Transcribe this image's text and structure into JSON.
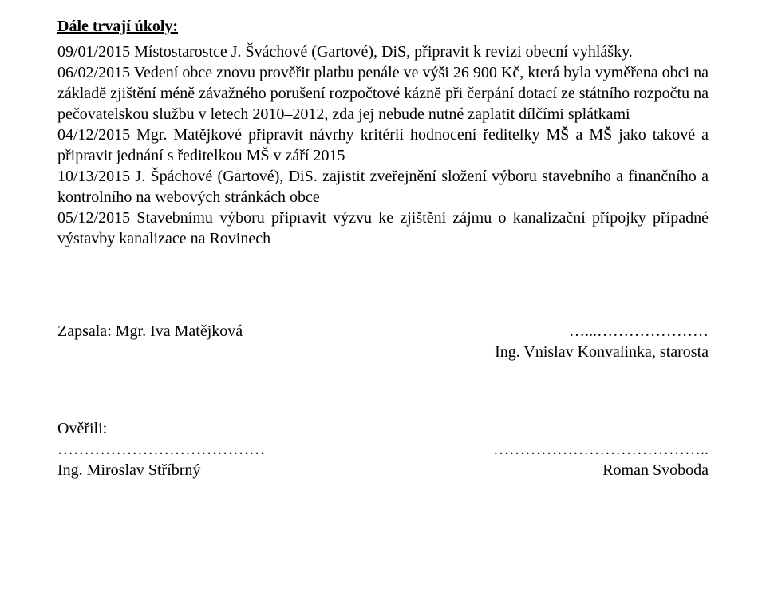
{
  "heading": "Dále trvají úkoly:",
  "task1": "09/01/2015 Místostarostce J. Šváchové (Gartové), DiS, připravit k revizi obecní vyhlášky.",
  "task2": "06/02/2015 Vedení obce znovu prověřit platbu penále ve výši 26 900 Kč, která byla vyměřena obci na základě zjištění méně závažného porušení rozpočtové kázně při čerpání dotací ze státního rozpočtu na pečovatelskou službu v letech 2010–2012, zda jej nebude nutné zaplatit dílčími splátkami",
  "task3": "04/12/2015 Mgr. Matějkové připravit návrhy kritérií hodnocení ředitelky MŠ a MŠ jako takové a připravit jednání s ředitelkou MŠ v září 2015",
  "task4": "10/13/2015 J. Špáchové (Gartové), DiS. zajistit zveřejnění složení výboru stavebního a finančního a kontrolního na webových stránkách obce",
  "task5": "05/12/2015 Stavebnímu výboru připravit výzvu ke zjištění zájmu o kanalizační přípojky případné výstavby kanalizace na Rovinech",
  "recorder_label": "Zapsala: Mgr. Iva Matějková",
  "recorder_dots": "…...…………………",
  "mayor": "Ing. Vnislav Konvalinka, starosta",
  "verified_label": "Ověřili:",
  "left_dots": "…………………………………",
  "right_dots": "…………………………………..",
  "verifier_left": "Ing. Miroslav Stříbrný",
  "verifier_right": "Roman Svoboda"
}
